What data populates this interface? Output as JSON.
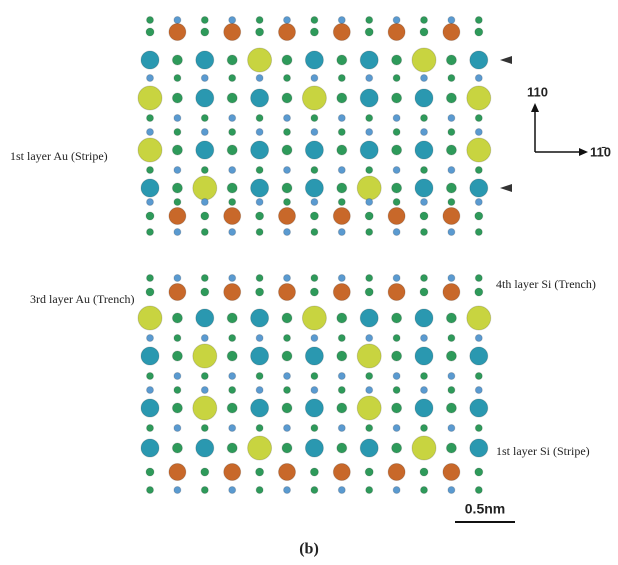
{
  "labels": {
    "au_stripe": "1st layer Au (Stripe)",
    "au_trench": "3rd layer Au (Trench)",
    "si_trench": "4th layer Si (Trench)",
    "si_stripe": "1st layer Si (Stripe)"
  },
  "axes": {
    "vertical": "110",
    "horizontal": "11̄0"
  },
  "scale_bar": "0.5nm",
  "caption": "(b)"
}
